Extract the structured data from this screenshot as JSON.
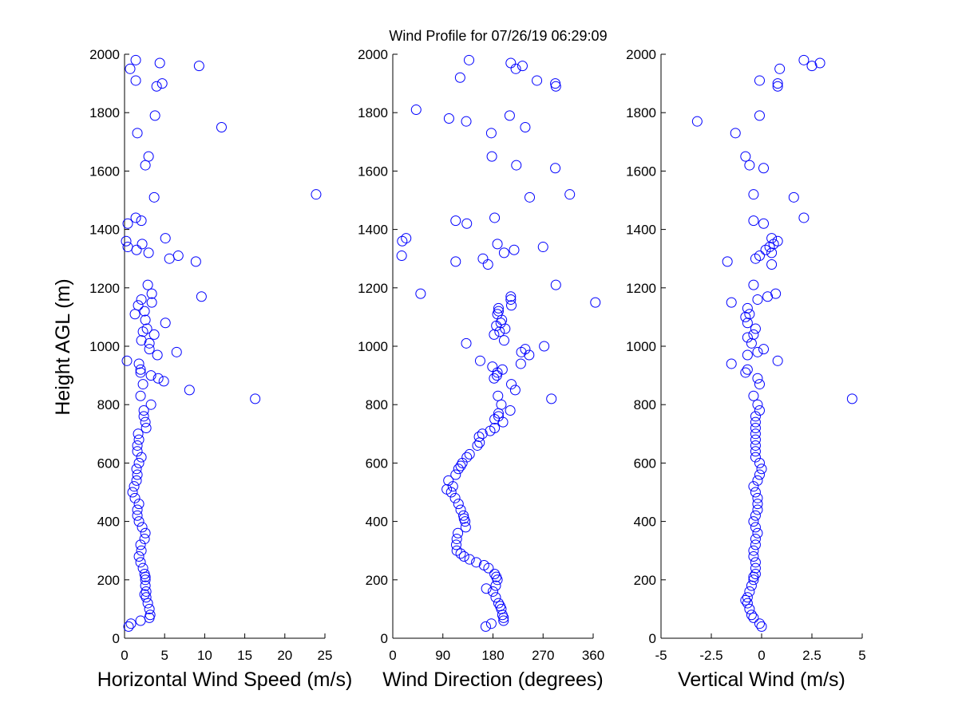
{
  "chart_data": {
    "title": "Wind Profile for  07/26/19 06:29:09",
    "ylabel": "Height AGL (m)",
    "ylim": [
      0,
      2000
    ],
    "yticks": [
      0,
      200,
      400,
      600,
      800,
      1000,
      1200,
      1400,
      1600,
      1800,
      2000
    ],
    "marker_color": "#0000ff",
    "panels": [
      {
        "type": "scatter",
        "xlabel": "Horizontal Wind Speed (m/s)",
        "xlim": [
          0,
          25
        ],
        "xticks": [
          0,
          5,
          10,
          15,
          20,
          25
        ],
        "xtick_labels": [
          "0",
          "5",
          "10",
          "15",
          "20",
          "25"
        ],
        "points": [
          [
            0.5,
            40
          ],
          [
            0.8,
            50
          ],
          [
            2.0,
            60
          ],
          [
            3.1,
            70
          ],
          [
            3.2,
            80
          ],
          [
            3.1,
            100
          ],
          [
            2.9,
            120
          ],
          [
            2.7,
            140
          ],
          [
            2.5,
            150
          ],
          [
            2.7,
            160
          ],
          [
            2.6,
            180
          ],
          [
            2.6,
            200
          ],
          [
            2.6,
            210
          ],
          [
            2.5,
            220
          ],
          [
            2.3,
            240
          ],
          [
            2.0,
            260
          ],
          [
            1.8,
            280
          ],
          [
            2.1,
            300
          ],
          [
            2.0,
            320
          ],
          [
            2.5,
            340
          ],
          [
            2.6,
            360
          ],
          [
            2.2,
            380
          ],
          [
            1.8,
            400
          ],
          [
            1.6,
            420
          ],
          [
            1.6,
            440
          ],
          [
            1.8,
            460
          ],
          [
            1.3,
            480
          ],
          [
            1.0,
            500
          ],
          [
            1.2,
            520
          ],
          [
            1.5,
            540
          ],
          [
            1.6,
            560
          ],
          [
            1.5,
            580
          ],
          [
            1.8,
            600
          ],
          [
            2.1,
            620
          ],
          [
            1.6,
            640
          ],
          [
            1.6,
            660
          ],
          [
            1.8,
            680
          ],
          [
            1.7,
            700
          ],
          [
            2.7,
            720
          ],
          [
            2.6,
            740
          ],
          [
            2.4,
            760
          ],
          [
            2.4,
            780
          ],
          [
            3.3,
            800
          ],
          [
            16.3,
            820
          ],
          [
            2.0,
            830
          ],
          [
            8.1,
            850
          ],
          [
            2.3,
            870
          ],
          [
            4.9,
            880
          ],
          [
            4.2,
            890
          ],
          [
            3.3,
            900
          ],
          [
            2.0,
            910
          ],
          [
            2.0,
            920
          ],
          [
            1.8,
            940
          ],
          [
            0.3,
            950
          ],
          [
            4.1,
            970
          ],
          [
            6.5,
            980
          ],
          [
            3.1,
            990
          ],
          [
            3.1,
            1010
          ],
          [
            2.1,
            1020
          ],
          [
            3.7,
            1040
          ],
          [
            2.3,
            1050
          ],
          [
            2.8,
            1060
          ],
          [
            5.1,
            1080
          ],
          [
            2.6,
            1090
          ],
          [
            1.3,
            1110
          ],
          [
            2.5,
            1120
          ],
          [
            1.7,
            1140
          ],
          [
            3.4,
            1150
          ],
          [
            2.1,
            1160
          ],
          [
            9.6,
            1170
          ],
          [
            3.4,
            1180
          ],
          [
            2.9,
            1210
          ],
          [
            8.9,
            1290
          ],
          [
            5.6,
            1300
          ],
          [
            6.7,
            1310
          ],
          [
            3.0,
            1320
          ],
          [
            1.5,
            1330
          ],
          [
            0.4,
            1340
          ],
          [
            2.2,
            1350
          ],
          [
            0.2,
            1360
          ],
          [
            5.1,
            1370
          ],
          [
            0.4,
            1420
          ],
          [
            2.1,
            1430
          ],
          [
            1.4,
            1440
          ],
          [
            3.7,
            1510
          ],
          [
            23.9,
            1520
          ],
          [
            2.6,
            1620
          ],
          [
            3.0,
            1650
          ],
          [
            1.6,
            1730
          ],
          [
            12.1,
            1750
          ],
          [
            3.8,
            1790
          ],
          [
            4.0,
            1890
          ],
          [
            4.7,
            1900
          ],
          [
            1.4,
            1910
          ],
          [
            0.7,
            1950
          ],
          [
            9.3,
            1960
          ],
          [
            4.4,
            1970
          ],
          [
            1.4,
            1980
          ]
        ]
      },
      {
        "type": "scatter",
        "xlabel": "Wind Direction (degrees)",
        "xlim": [
          0,
          360
        ],
        "xticks": [
          0,
          90,
          180,
          270,
          360
        ],
        "xtick_labels": [
          "0",
          "90",
          "180",
          "270",
          "360"
        ],
        "points": [
          [
            167,
            40
          ],
          [
            177,
            50
          ],
          [
            199,
            60
          ],
          [
            199,
            70
          ],
          [
            197,
            80
          ],
          [
            195,
            100
          ],
          [
            193,
            110
          ],
          [
            190,
            120
          ],
          [
            185,
            140
          ],
          [
            180,
            160
          ],
          [
            168,
            170
          ],
          [
            185,
            180
          ],
          [
            188,
            200
          ],
          [
            186,
            210
          ],
          [
            183,
            220
          ],
          [
            172,
            240
          ],
          [
            164,
            250
          ],
          [
            150,
            260
          ],
          [
            138,
            270
          ],
          [
            128,
            280
          ],
          [
            122,
            290
          ],
          [
            115,
            300
          ],
          [
            114,
            320
          ],
          [
            115,
            340
          ],
          [
            117,
            360
          ],
          [
            131,
            380
          ],
          [
            130,
            400
          ],
          [
            128,
            410
          ],
          [
            127,
            420
          ],
          [
            122,
            440
          ],
          [
            118,
            460
          ],
          [
            112,
            480
          ],
          [
            105,
            500
          ],
          [
            97,
            510
          ],
          [
            108,
            520
          ],
          [
            100,
            540
          ],
          [
            113,
            560
          ],
          [
            118,
            580
          ],
          [
            122,
            590
          ],
          [
            125,
            600
          ],
          [
            133,
            620
          ],
          [
            138,
            630
          ],
          [
            152,
            660
          ],
          [
            156,
            670
          ],
          [
            155,
            690
          ],
          [
            161,
            700
          ],
          [
            175,
            710
          ],
          [
            183,
            720
          ],
          [
            198,
            740
          ],
          [
            183,
            750
          ],
          [
            190,
            760
          ],
          [
            190,
            770
          ],
          [
            211,
            780
          ],
          [
            195,
            800
          ],
          [
            285,
            820
          ],
          [
            189,
            830
          ],
          [
            220,
            850
          ],
          [
            213,
            870
          ],
          [
            182,
            890
          ],
          [
            187,
            900
          ],
          [
            188,
            910
          ],
          [
            197,
            920
          ],
          [
            179,
            930
          ],
          [
            230,
            940
          ],
          [
            157,
            950
          ],
          [
            245,
            970
          ],
          [
            231,
            980
          ],
          [
            238,
            990
          ],
          [
            272,
            1000
          ],
          [
            132,
            1010
          ],
          [
            200,
            1020
          ],
          [
            182,
            1040
          ],
          [
            192,
            1050
          ],
          [
            202,
            1060
          ],
          [
            186,
            1070
          ],
          [
            194,
            1080
          ],
          [
            196,
            1090
          ],
          [
            188,
            1110
          ],
          [
            190,
            1120
          ],
          [
            190,
            1130
          ],
          [
            213,
            1140
          ],
          [
            364,
            1150
          ],
          [
            212,
            1160
          ],
          [
            212,
            1170
          ],
          [
            50,
            1180
          ],
          [
            293,
            1210
          ],
          [
            171,
            1280
          ],
          [
            113,
            1290
          ],
          [
            162,
            1300
          ],
          [
            16,
            1310
          ],
          [
            200,
            1320
          ],
          [
            218,
            1330
          ],
          [
            270,
            1340
          ],
          [
            188,
            1350
          ],
          [
            17,
            1360
          ],
          [
            24,
            1370
          ],
          [
            133,
            1420
          ],
          [
            113,
            1430
          ],
          [
            183,
            1440
          ],
          [
            246,
            1510
          ],
          [
            318,
            1520
          ],
          [
            292,
            1610
          ],
          [
            222,
            1620
          ],
          [
            178,
            1650
          ],
          [
            177,
            1730
          ],
          [
            238,
            1750
          ],
          [
            132,
            1770
          ],
          [
            101,
            1780
          ],
          [
            210,
            1790
          ],
          [
            42,
            1810
          ],
          [
            293,
            1890
          ],
          [
            292,
            1900
          ],
          [
            259,
            1910
          ],
          [
            121,
            1920
          ],
          [
            221,
            1950
          ],
          [
            233,
            1960
          ],
          [
            212,
            1970
          ],
          [
            137,
            1980
          ]
        ]
      },
      {
        "type": "scatter",
        "xlabel": "Vertical Wind (m/s)",
        "xlim": [
          -5,
          5
        ],
        "xticks": [
          -5,
          -2.5,
          0,
          2.5,
          5
        ],
        "xtick_labels": [
          "-5",
          "-2.5",
          "0",
          "2.5",
          "5"
        ],
        "points": [
          [
            0.0,
            40
          ],
          [
            -0.1,
            50
          ],
          [
            -0.4,
            70
          ],
          [
            -0.5,
            80
          ],
          [
            -0.6,
            100
          ],
          [
            -0.7,
            120
          ],
          [
            -0.8,
            130
          ],
          [
            -0.7,
            140
          ],
          [
            -0.6,
            160
          ],
          [
            -0.5,
            180
          ],
          [
            -0.4,
            200
          ],
          [
            -0.4,
            210
          ],
          [
            -0.3,
            220
          ],
          [
            -0.3,
            240
          ],
          [
            -0.3,
            260
          ],
          [
            -0.4,
            280
          ],
          [
            -0.4,
            300
          ],
          [
            -0.3,
            320
          ],
          [
            -0.3,
            340
          ],
          [
            -0.2,
            360
          ],
          [
            -0.3,
            380
          ],
          [
            -0.4,
            400
          ],
          [
            -0.3,
            420
          ],
          [
            -0.2,
            440
          ],
          [
            -0.2,
            460
          ],
          [
            -0.2,
            480
          ],
          [
            -0.3,
            500
          ],
          [
            -0.4,
            520
          ],
          [
            -0.2,
            540
          ],
          [
            -0.1,
            560
          ],
          [
            0.0,
            580
          ],
          [
            -0.1,
            600
          ],
          [
            -0.3,
            620
          ],
          [
            -0.3,
            640
          ],
          [
            -0.3,
            660
          ],
          [
            -0.3,
            680
          ],
          [
            -0.3,
            700
          ],
          [
            -0.3,
            720
          ],
          [
            -0.3,
            740
          ],
          [
            -0.3,
            760
          ],
          [
            -0.1,
            780
          ],
          [
            -0.2,
            800
          ],
          [
            4.5,
            820
          ],
          [
            -0.4,
            830
          ],
          [
            -0.1,
            870
          ],
          [
            -0.2,
            890
          ],
          [
            -0.8,
            910
          ],
          [
            -0.7,
            920
          ],
          [
            -1.5,
            940
          ],
          [
            0.8,
            950
          ],
          [
            -0.7,
            970
          ],
          [
            -0.2,
            980
          ],
          [
            0.1,
            990
          ],
          [
            -0.5,
            1010
          ],
          [
            -0.7,
            1030
          ],
          [
            -0.4,
            1040
          ],
          [
            -0.3,
            1060
          ],
          [
            -0.7,
            1080
          ],
          [
            -0.8,
            1100
          ],
          [
            -0.6,
            1110
          ],
          [
            -0.7,
            1130
          ],
          [
            -1.5,
            1150
          ],
          [
            -0.2,
            1160
          ],
          [
            0.3,
            1170
          ],
          [
            0.7,
            1180
          ],
          [
            -0.4,
            1210
          ],
          [
            0.5,
            1280
          ],
          [
            -1.7,
            1290
          ],
          [
            -0.3,
            1300
          ],
          [
            -0.1,
            1310
          ],
          [
            0.5,
            1320
          ],
          [
            0.2,
            1330
          ],
          [
            0.4,
            1340
          ],
          [
            0.6,
            1350
          ],
          [
            0.8,
            1360
          ],
          [
            0.5,
            1370
          ],
          [
            0.1,
            1420
          ],
          [
            -0.4,
            1430
          ],
          [
            2.1,
            1440
          ],
          [
            1.6,
            1510
          ],
          [
            -0.4,
            1520
          ],
          [
            0.1,
            1610
          ],
          [
            -0.6,
            1620
          ],
          [
            -0.8,
            1650
          ],
          [
            -1.3,
            1730
          ],
          [
            -3.2,
            1770
          ],
          [
            -0.1,
            1790
          ],
          [
            0.8,
            1890
          ],
          [
            0.8,
            1900
          ],
          [
            -0.1,
            1910
          ],
          [
            0.9,
            1950
          ],
          [
            2.5,
            1960
          ],
          [
            2.9,
            1970
          ],
          [
            2.1,
            1980
          ]
        ]
      }
    ]
  }
}
